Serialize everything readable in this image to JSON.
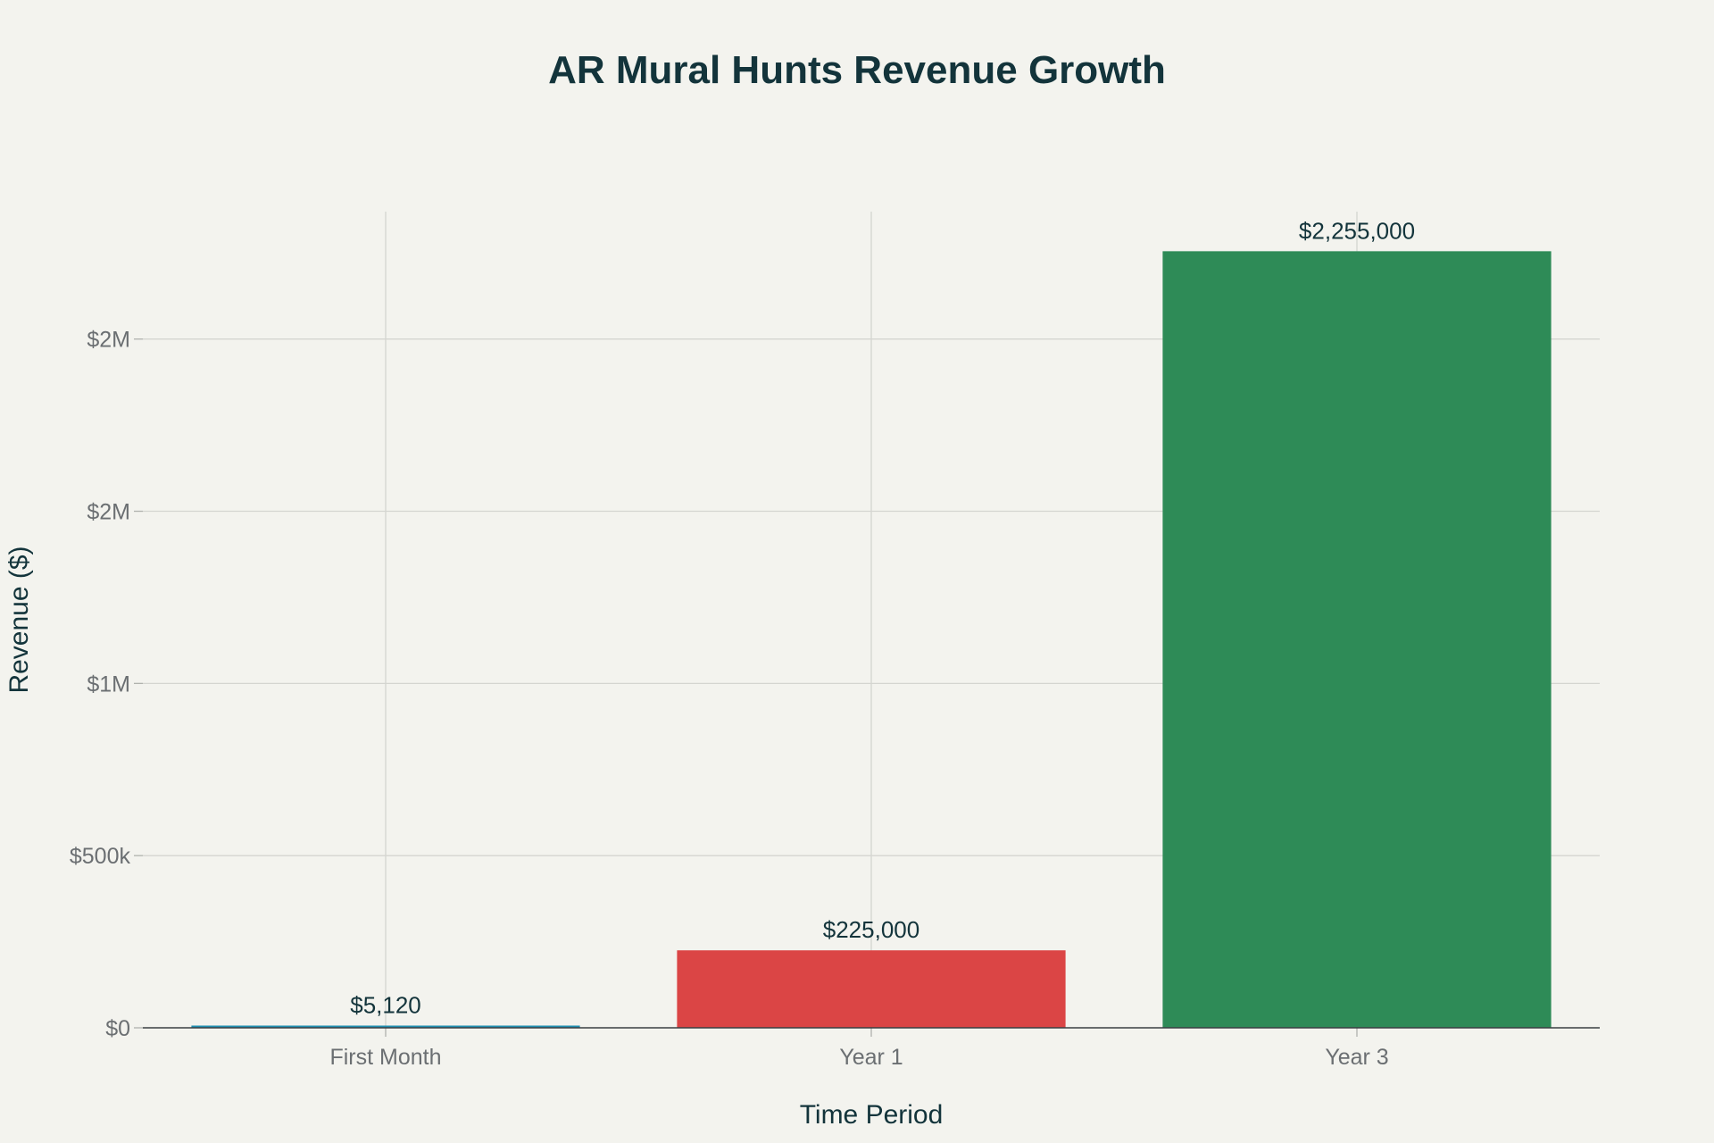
{
  "chart_data": {
    "type": "bar",
    "title": "AR Mural Hunts Revenue Growth",
    "xlabel": "Time Period",
    "ylabel": "Revenue ($)",
    "categories": [
      "First Month",
      "Year 1",
      "Year 3"
    ],
    "values": [
      5120,
      225000,
      2255000
    ],
    "data_labels": [
      "$5,120",
      "$225,000",
      "$2,255,000"
    ],
    "colors": [
      "#1f8fb0",
      "#db4545",
      "#2e8b57"
    ],
    "ylim": [
      0,
      2370000
    ],
    "yticks": [
      {
        "value": 0,
        "label": "$0"
      },
      {
        "value": 500000,
        "label": "$500k"
      },
      {
        "value": 1000000,
        "label": "$1M"
      },
      {
        "value": 1500000,
        "label": "$2M"
      },
      {
        "value": 2000000,
        "label": "$2M"
      }
    ],
    "grid": true,
    "legend": "none"
  }
}
